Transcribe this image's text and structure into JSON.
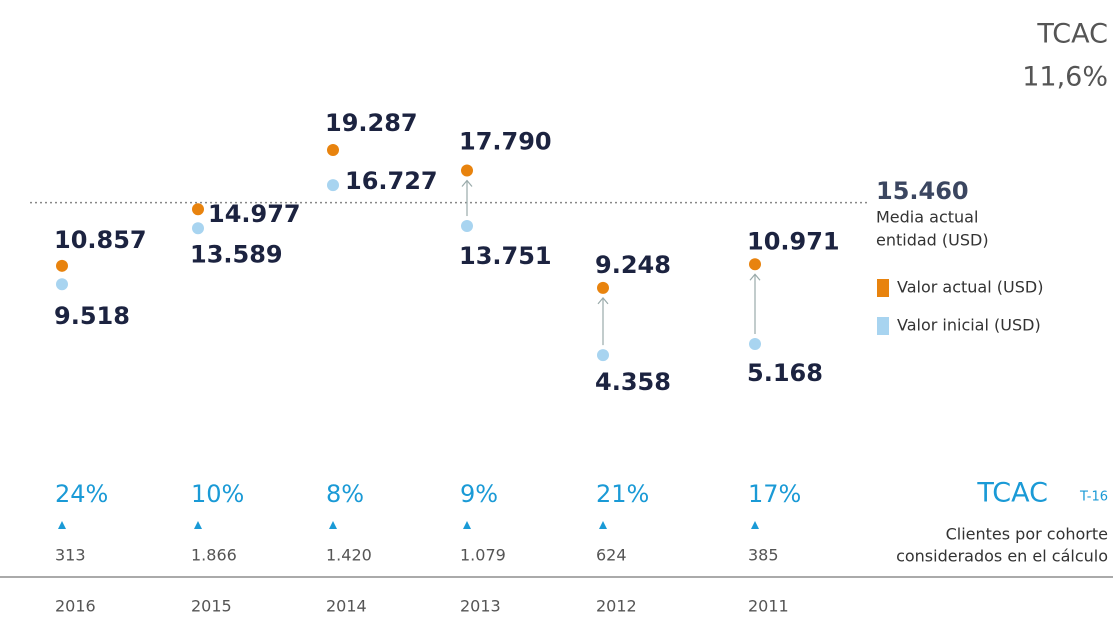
{
  "chart_data": {
    "type": "dot",
    "cagr_title": "TCAC",
    "cagr_value": 11.6,
    "cagr_label": "11,6%",
    "categories": [
      "2016",
      "2015",
      "2014",
      "2013",
      "2012",
      "2011"
    ],
    "ylim": [
      0,
      27000
    ],
    "series": [
      {
        "name": "Valor actual (USD)",
        "color": "#e8830e",
        "values": [
          10857,
          14977,
          19287,
          17790,
          9248,
          10971
        ],
        "value_labels": [
          "10.857",
          "14.977",
          "19.287",
          "17.790",
          "9.248",
          "10.971"
        ]
      },
      {
        "name": "Valor inicial (USD)",
        "color": "#a8d4f0",
        "values": [
          9518,
          13589,
          16727,
          13751,
          4358,
          5168
        ],
        "value_labels": [
          "9.518",
          "13.589",
          "16.727",
          "13.751",
          "4.358",
          "5.168"
        ]
      }
    ],
    "reference": {
      "value": 15460,
      "label": "15.460",
      "text": [
        "Media actual",
        "entidad (USD)"
      ]
    },
    "growth_title": "TCAC",
    "growth_subtitle": "T-16",
    "growth_values": [
      24,
      10,
      8,
      9,
      21,
      17
    ],
    "growth_labels": [
      "24%",
      "10%",
      "8%",
      "9%",
      "21%",
      "17%"
    ],
    "clients_text": [
      "Clientes por cohorte",
      "considerados en el cálculo"
    ],
    "clients": [
      313,
      1866,
      1420,
      1079,
      624,
      385
    ],
    "clients_labels": [
      "313",
      "1.866",
      "1.420",
      "1.079",
      "624",
      "385"
    ]
  }
}
